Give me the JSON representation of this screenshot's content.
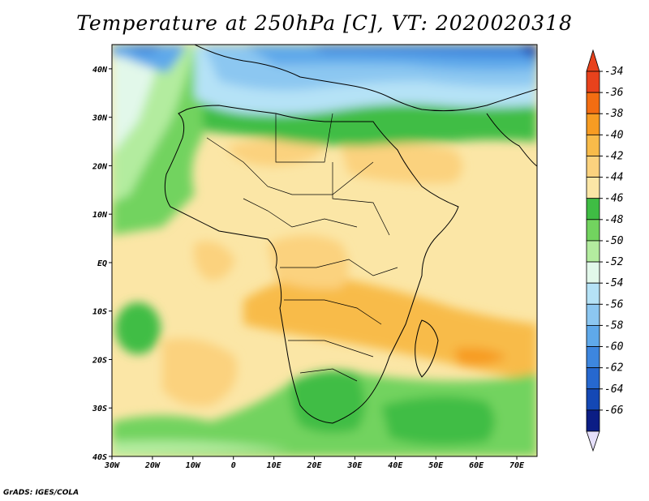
{
  "title": "Temperature at 250hPa [C], VT: 2020020318",
  "credit": "GrADS: IGES/COLA",
  "map": {
    "lon_range": [
      -30,
      75
    ],
    "lat_range": [
      -40,
      45
    ],
    "lon_ticks": [
      {
        "value": -30,
        "label": "30W"
      },
      {
        "value": -20,
        "label": "20W"
      },
      {
        "value": -10,
        "label": "10W"
      },
      {
        "value": 0,
        "label": "0"
      },
      {
        "value": 10,
        "label": "10E"
      },
      {
        "value": 20,
        "label": "20E"
      },
      {
        "value": 30,
        "label": "30E"
      },
      {
        "value": 40,
        "label": "40E"
      },
      {
        "value": 50,
        "label": "50E"
      },
      {
        "value": 60,
        "label": "60E"
      },
      {
        "value": 70,
        "label": "70E"
      }
    ],
    "lat_ticks": [
      {
        "value": 40,
        "label": "40N"
      },
      {
        "value": 30,
        "label": "30N"
      },
      {
        "value": 20,
        "label": "20N"
      },
      {
        "value": 10,
        "label": "10N"
      },
      {
        "value": 0,
        "label": "EQ"
      },
      {
        "value": -10,
        "label": "10S"
      },
      {
        "value": -20,
        "label": "20S"
      },
      {
        "value": -30,
        "label": "30S"
      },
      {
        "value": -40,
        "label": "40S"
      }
    ]
  },
  "colorbar": {
    "levels": [
      {
        "label": "-34",
        "color": "#e8421c"
      },
      {
        "label": "-36",
        "color": "#f36d12"
      },
      {
        "label": "-38",
        "color": "#f79c22"
      },
      {
        "label": "-40",
        "color": "#f8bb4a"
      },
      {
        "label": "-42",
        "color": "#fbd27e"
      },
      {
        "label": "-44",
        "color": "#fbe6a6"
      },
      {
        "label": "-46",
        "color": "#3fbd44"
      },
      {
        "label": "-48",
        "color": "#72d35f"
      },
      {
        "label": "-50",
        "color": "#b3ec9f"
      },
      {
        "label": "-52",
        "color": "#e2f8ea"
      },
      {
        "label": "-54",
        "color": "#b5e2f6"
      },
      {
        "label": "-56",
        "color": "#8cc7f1"
      },
      {
        "label": "-58",
        "color": "#5fa9ea"
      },
      {
        "label": "-60",
        "color": "#3d86de"
      },
      {
        "label": "-62",
        "color": "#2668cf"
      },
      {
        "label": "-64",
        "color": "#1448b5"
      },
      {
        "label": "-66",
        "color": "#0b1d85"
      }
    ],
    "top_arrow_color": "#e8421c",
    "bottom_arrow_color": "#e6e0fb"
  }
}
